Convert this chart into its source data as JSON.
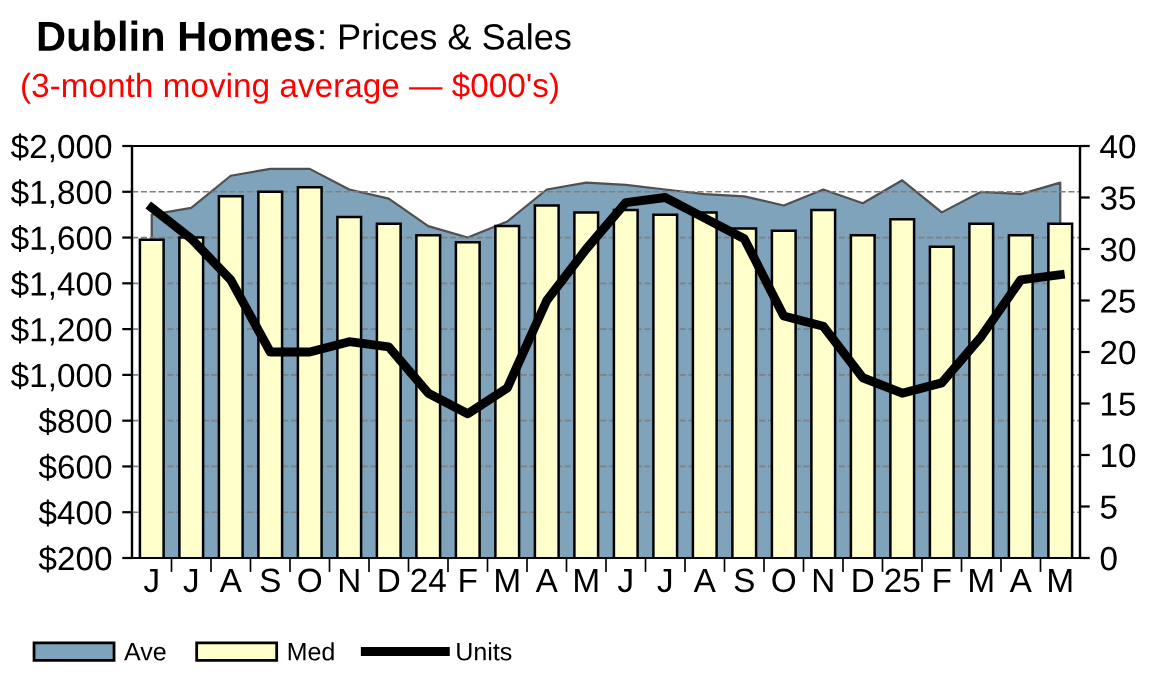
{
  "chart_data": {
    "type": "bar",
    "title": "Dublin Homes",
    "subtitle": "(3-month moving average — $000's)",
    "annotations": [
      ": Prices & Sales"
    ],
    "categories": [
      "J",
      "J",
      "A",
      "S",
      "O",
      "N",
      "D",
      "24",
      "F",
      "M",
      "A",
      "M",
      "J",
      "J",
      "A",
      "S",
      "O",
      "N",
      "D",
      "25",
      "F",
      "M",
      "A",
      "M"
    ],
    "series": [
      {
        "name": "Ave",
        "type": "area",
        "color": "#7fa3bb",
        "values": [
          1700,
          1730,
          1870,
          1900,
          1900,
          1810,
          1770,
          1650,
          1600,
          1670,
          1810,
          1840,
          1830,
          1810,
          1790,
          1780,
          1740,
          1810,
          1750,
          1850,
          1710,
          1800,
          1790,
          1840
        ]
      },
      {
        "name": "Med",
        "color": "#ffffcc",
        "values": [
          1590,
          1600,
          1780,
          1800,
          1820,
          1690,
          1660,
          1610,
          1580,
          1650,
          1740,
          1710,
          1720,
          1700,
          1710,
          1640,
          1630,
          1720,
          1610,
          1680,
          1560,
          1660,
          1610,
          1660
        ]
      },
      {
        "name": "Units",
        "type": "line",
        "axis": "y2",
        "color": "#000000",
        "values": [
          34,
          31,
          27,
          20,
          20,
          21,
          20.5,
          16,
          14,
          16.5,
          25,
          30,
          34.5,
          35,
          33,
          31,
          23.5,
          22.5,
          17.5,
          16,
          17,
          21.5,
          27,
          27.5
        ]
      }
    ],
    "ylim": [
      200,
      2000
    ],
    "yticks": [
      {
        "value": 200,
        "label": "$200"
      },
      {
        "value": 400,
        "label": "$400"
      },
      {
        "value": 600,
        "label": "$600"
      },
      {
        "value": 800,
        "label": "$800"
      },
      {
        "value": 1000,
        "label": "$1,000"
      },
      {
        "value": 1200,
        "label": "$1,200"
      },
      {
        "value": 1400,
        "label": "$1,400"
      },
      {
        "value": 1600,
        "label": "$1,600"
      },
      {
        "value": 1800,
        "label": "$1,800"
      },
      {
        "value": 2000,
        "label": "$2,000"
      }
    ],
    "y2lim": [
      0,
      40
    ],
    "y2ticks": [
      0,
      5,
      10,
      15,
      20,
      25,
      30,
      35,
      40
    ],
    "grid": "y",
    "legend": "bottom left",
    "marker": "none",
    "line_style": "solid"
  }
}
